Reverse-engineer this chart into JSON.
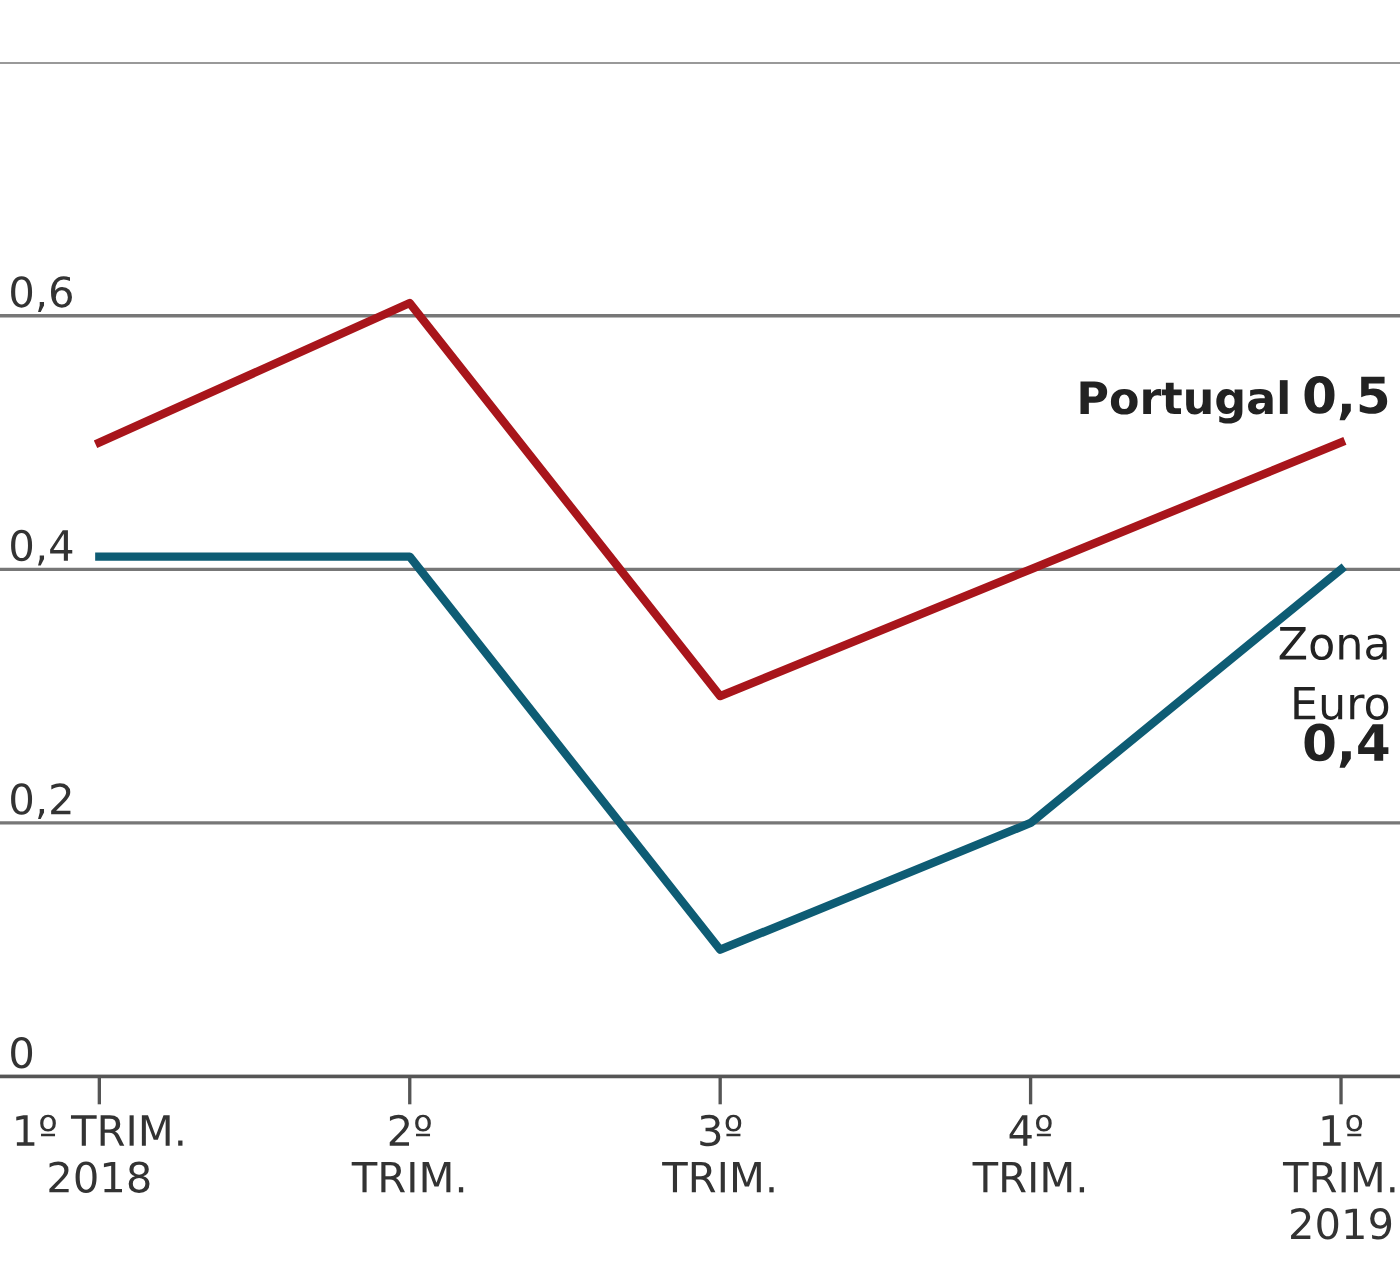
{
  "chart_data": {
    "type": "line",
    "categories": [
      "1º TRIM.\n2018",
      "2º\nTRIM.",
      "3º\nTRIM.",
      "4º\nTRIM.",
      "1º\nTRIM.\n2019"
    ],
    "series": [
      {
        "name": "Portugal",
        "color": "#a8151b",
        "values": [
          0.5,
          0.61,
          0.3,
          0.4,
          0.5
        ],
        "value_labels": [
          null,
          null,
          null,
          null,
          "0,5"
        ]
      },
      {
        "name": "Zona Euro",
        "color": "#0e5c74",
        "values": [
          0.41,
          0.41,
          0.1,
          0.2,
          0.4
        ],
        "value_labels": [
          null,
          null,
          null,
          null,
          "0,4"
        ]
      }
    ],
    "ylim": [
      0,
      0.8
    ],
    "yticks": [
      {
        "value": 0,
        "label": "0"
      },
      {
        "value": 0.2,
        "label": "0,2"
      },
      {
        "value": 0.4,
        "label": "0,4"
      },
      {
        "value": 0.6,
        "label": "0,6"
      },
      {
        "value": 0.8,
        "label": null
      }
    ],
    "grid": "y",
    "legend": false,
    "marker": "none",
    "line_style": "solid"
  }
}
